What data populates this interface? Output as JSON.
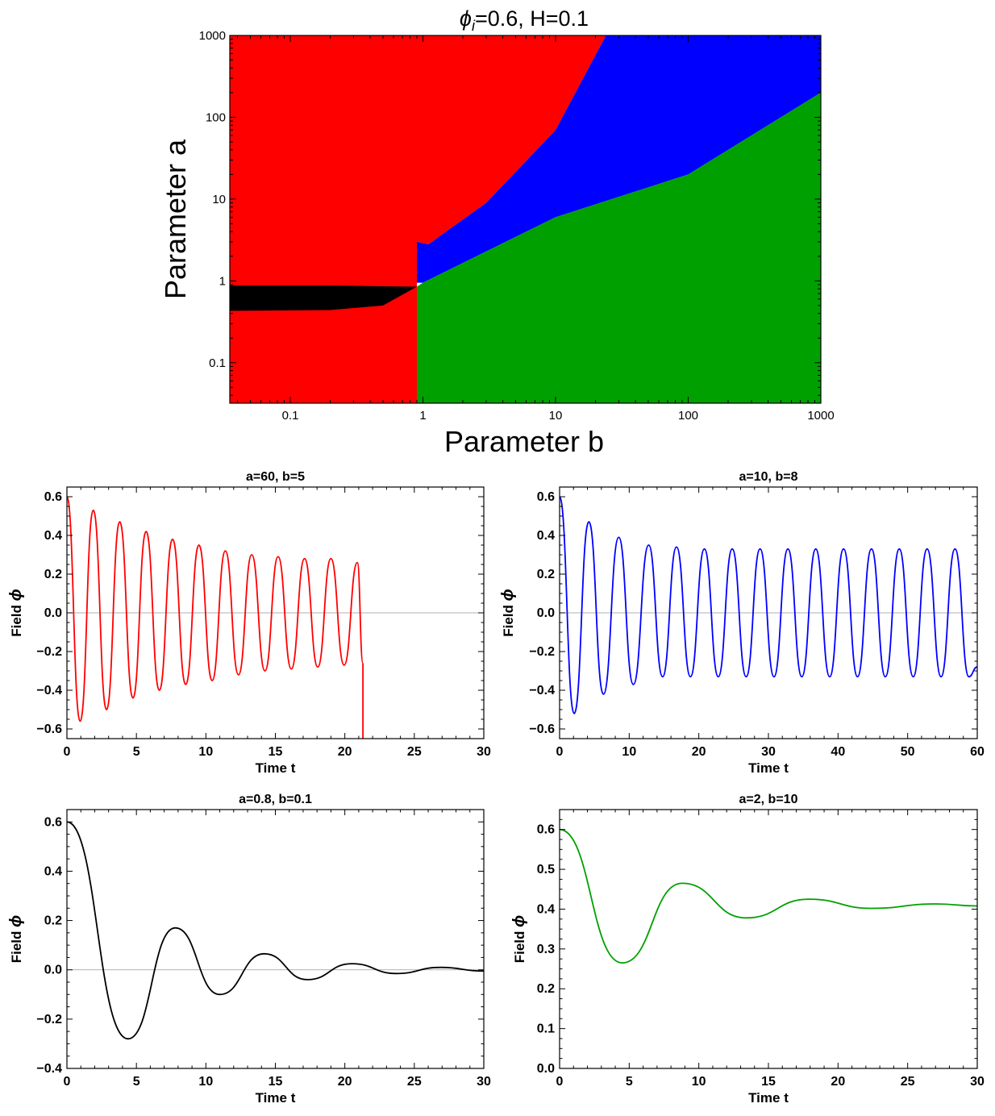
{
  "chart_data": [
    {
      "type": "heatmap",
      "title_prefix": "ϕ",
      "title_subscript": "i",
      "title_rest": "=0.6, H=0.1",
      "xlabel": "Parameter b",
      "ylabel": "Parameter a",
      "xscale": "log",
      "yscale": "log",
      "xlim": [
        0.035,
        1000
      ],
      "ylim": [
        0.032,
        1000
      ],
      "xticks": [
        0.1,
        1,
        10,
        100,
        1000
      ],
      "xtick_labels": [
        "0.1",
        "1",
        "10",
        "100",
        "1000"
      ],
      "yticks": [
        0.1,
        1,
        10,
        100,
        1000
      ],
      "ytick_labels": [
        "0.1",
        "1",
        "10",
        "100",
        "1000"
      ],
      "colors": {
        "red": "#ff0000",
        "blue": "#0000ff",
        "green": "#00a000",
        "black": "#000000"
      },
      "regions": [
        {
          "color": "red",
          "points": [
            [
              0.035,
              0.032
            ],
            [
              0.9,
              0.032
            ],
            [
              0.9,
              3
            ],
            [
              1.1,
              2.8
            ],
            [
              3,
              9
            ],
            [
              10,
              70
            ],
            [
              24,
              1000
            ],
            [
              0.035,
              1000
            ]
          ]
        },
        {
          "color": "blue",
          "points": [
            [
              0.9,
              0.95
            ],
            [
              0.9,
              3
            ],
            [
              1.1,
              2.8
            ],
            [
              3,
              9
            ],
            [
              10,
              70
            ],
            [
              24,
              1000
            ],
            [
              1000,
              1000
            ],
            [
              1000,
              200
            ],
            [
              100,
              20
            ],
            [
              10,
              6
            ],
            [
              1,
              0.95
            ]
          ]
        },
        {
          "color": "green",
          "points": [
            [
              0.9,
              0.032
            ],
            [
              1000,
              0.032
            ],
            [
              1000,
              200
            ],
            [
              100,
              20
            ],
            [
              10,
              6
            ],
            [
              1,
              0.95
            ],
            [
              0.9,
              0.85
            ]
          ]
        },
        {
          "color": "black",
          "points": [
            [
              0.035,
              0.43
            ],
            [
              0.2,
              0.44
            ],
            [
              0.5,
              0.5
            ],
            [
              0.9,
              0.85
            ],
            [
              0.5,
              0.86
            ],
            [
              0.2,
              0.88
            ],
            [
              0.035,
              0.88
            ]
          ]
        }
      ]
    },
    {
      "type": "line",
      "title": "a=60, b=5",
      "xlabel": "Time t",
      "ylabel_text": "Field ",
      "ylabel_symbol": "ϕ",
      "color": "#ff0000",
      "xlim": [
        0,
        30
      ],
      "ylim": [
        -0.65,
        0.65
      ],
      "xticks": [
        0,
        5,
        10,
        15,
        20,
        25,
        30
      ],
      "xtick_labels": [
        "0",
        "5",
        "10",
        "15",
        "20",
        "25",
        "30"
      ],
      "yticks": [
        -0.6,
        -0.4,
        -0.2,
        0,
        0.2,
        0.4,
        0.6
      ],
      "ytick_labels": [
        "−0.6",
        "−0.4",
        "−0.2",
        "0.0",
        "0.2",
        "0.4",
        "0.6"
      ],
      "x": [
        0,
        0.95,
        1.9,
        2.85,
        3.8,
        4.75,
        5.7,
        6.65,
        7.6,
        8.55,
        9.5,
        10.45,
        11.4,
        12.35,
        13.3,
        14.25,
        15.2,
        16.15,
        17.1,
        18.05,
        19.0,
        19.95,
        20.9,
        21.3,
        21.3
      ],
      "y": [
        0.6,
        -0.56,
        0.53,
        -0.5,
        0.47,
        -0.44,
        0.42,
        -0.4,
        0.38,
        -0.37,
        0.35,
        -0.35,
        0.32,
        -0.32,
        0.3,
        -0.3,
        0.29,
        -0.29,
        0.28,
        -0.28,
        0.28,
        -0.27,
        0.26,
        -0.26,
        -0.65
      ]
    },
    {
      "type": "line",
      "title": "a=10, b=8",
      "xlabel": "Time t",
      "ylabel_text": "Field ",
      "ylabel_symbol": "ϕ",
      "color": "#0000ff",
      "xlim": [
        0,
        60
      ],
      "ylim": [
        -0.65,
        0.65
      ],
      "xticks": [
        0,
        10,
        20,
        30,
        40,
        50,
        60
      ],
      "xtick_labels": [
        "0",
        "10",
        "20",
        "30",
        "40",
        "50",
        "60"
      ],
      "yticks": [
        -0.6,
        -0.4,
        -0.2,
        0,
        0.2,
        0.4,
        0.6
      ],
      "ytick_labels": [
        "−0.6",
        "−0.4",
        "−0.2",
        "0.0",
        "0.2",
        "0.4",
        "0.6"
      ],
      "x": [
        0,
        2.1,
        4.2,
        6.3,
        8.5,
        10.6,
        12.8,
        14.8,
        16.8,
        18.8,
        20.8,
        22.8,
        24.8,
        26.8,
        28.8,
        30.8,
        32.8,
        34.8,
        36.8,
        38.8,
        40.8,
        42.8,
        44.8,
        46.8,
        48.8,
        50.8,
        52.8,
        54.8,
        56.8,
        58.8,
        60
      ],
      "y": [
        0.6,
        -0.52,
        0.47,
        -0.42,
        0.39,
        -0.37,
        0.35,
        -0.33,
        0.34,
        -0.33,
        0.33,
        -0.33,
        0.33,
        -0.33,
        0.33,
        -0.33,
        0.33,
        -0.33,
        0.33,
        -0.33,
        0.33,
        -0.33,
        0.33,
        -0.33,
        0.33,
        -0.33,
        0.33,
        -0.33,
        0.33,
        -0.33,
        -0.28
      ]
    },
    {
      "type": "line",
      "title": "a=0.8, b=0.1",
      "xlabel": "Time t",
      "ylabel_text": "Field ",
      "ylabel_symbol": "ϕ",
      "color": "#000000",
      "xlim": [
        0,
        30
      ],
      "ylim": [
        -0.4,
        0.65
      ],
      "xticks": [
        0,
        5,
        10,
        15,
        20,
        25,
        30
      ],
      "xtick_labels": [
        "0",
        "5",
        "10",
        "15",
        "20",
        "25",
        "30"
      ],
      "yticks": [
        -0.4,
        -0.2,
        0,
        0.2,
        0.4,
        0.6
      ],
      "ytick_labels": [
        "−0.4",
        "−0.2",
        "0.0",
        "0.2",
        "0.4",
        "0.6"
      ],
      "x": [
        0,
        4.4,
        7.8,
        11.0,
        14.2,
        17.3,
        20.5,
        23.7,
        26.9,
        30
      ],
      "y": [
        0.6,
        -0.28,
        0.17,
        -0.1,
        0.065,
        -0.04,
        0.025,
        -0.015,
        0.01,
        -0.005
      ]
    },
    {
      "type": "line",
      "title": "a=2, b=10",
      "xlabel": "Time t",
      "ylabel_text": "Field ",
      "ylabel_symbol": "ϕ",
      "color": "#00a000",
      "xlim": [
        0,
        30
      ],
      "ylim": [
        0,
        0.65
      ],
      "xticks": [
        0,
        5,
        10,
        15,
        20,
        25,
        30
      ],
      "xtick_labels": [
        "0",
        "5",
        "10",
        "15",
        "20",
        "25",
        "30"
      ],
      "yticks": [
        0,
        0.1,
        0.2,
        0.3,
        0.4,
        0.5,
        0.6
      ],
      "ytick_labels": [
        "0.0",
        "0.1",
        "0.2",
        "0.3",
        "0.4",
        "0.5",
        "0.6"
      ],
      "x": [
        0,
        4.5,
        8.8,
        13.4,
        17.9,
        22.4,
        27.0,
        30
      ],
      "y": [
        0.6,
        0.265,
        0.465,
        0.378,
        0.425,
        0.402,
        0.413,
        0.408
      ]
    }
  ]
}
